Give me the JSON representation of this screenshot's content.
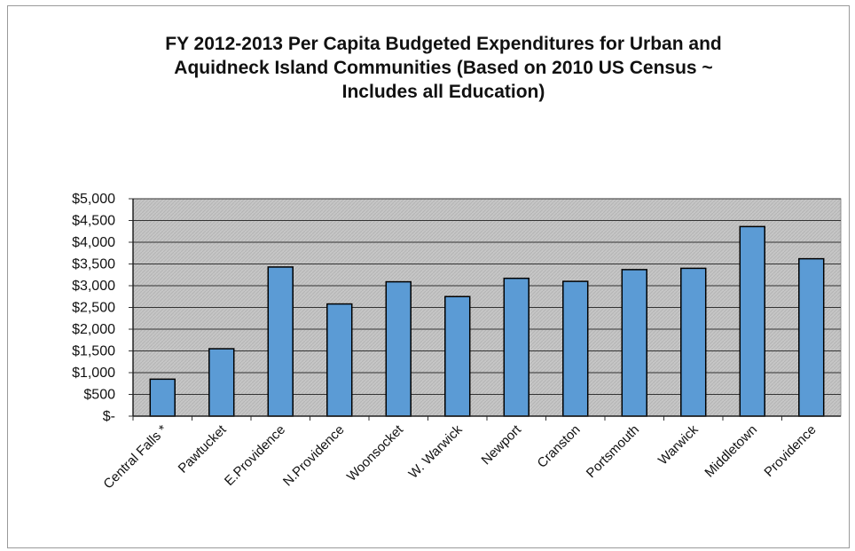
{
  "chart_data": {
    "type": "bar",
    "title_lines": [
      "FY 2012-2013 Per Capita Budgeted Expenditures for Urban and",
      "Aquidneck Island Communities (Based on 2010 US Census ~",
      "Includes all Education)"
    ],
    "categories": [
      "Central Falls *",
      "Pawtucket",
      "E.Providence",
      "N.Providence",
      "Woonsocket",
      "W. Warwick",
      "Newport",
      "Cranston",
      "Portsmouth",
      "Warwick",
      "Middletown",
      "Providence"
    ],
    "values": [
      850,
      1550,
      3430,
      2580,
      3090,
      2750,
      3170,
      3100,
      3370,
      3400,
      4360,
      3620
    ],
    "ylim": [
      0,
      5000
    ],
    "yticks": [
      0,
      500,
      1000,
      1500,
      2000,
      2500,
      3000,
      3500,
      4000,
      4500,
      5000
    ],
    "ytick_labels": [
      "$-",
      "$500",
      "$1,000",
      "$1,500",
      "$2,000",
      "$2,500",
      "$3,000",
      "$3,500",
      "$4,000",
      "$4,500",
      "$5,000"
    ],
    "grid": true,
    "bar_color": "#5b9bd5",
    "plot_background": "#c8c8c8"
  }
}
